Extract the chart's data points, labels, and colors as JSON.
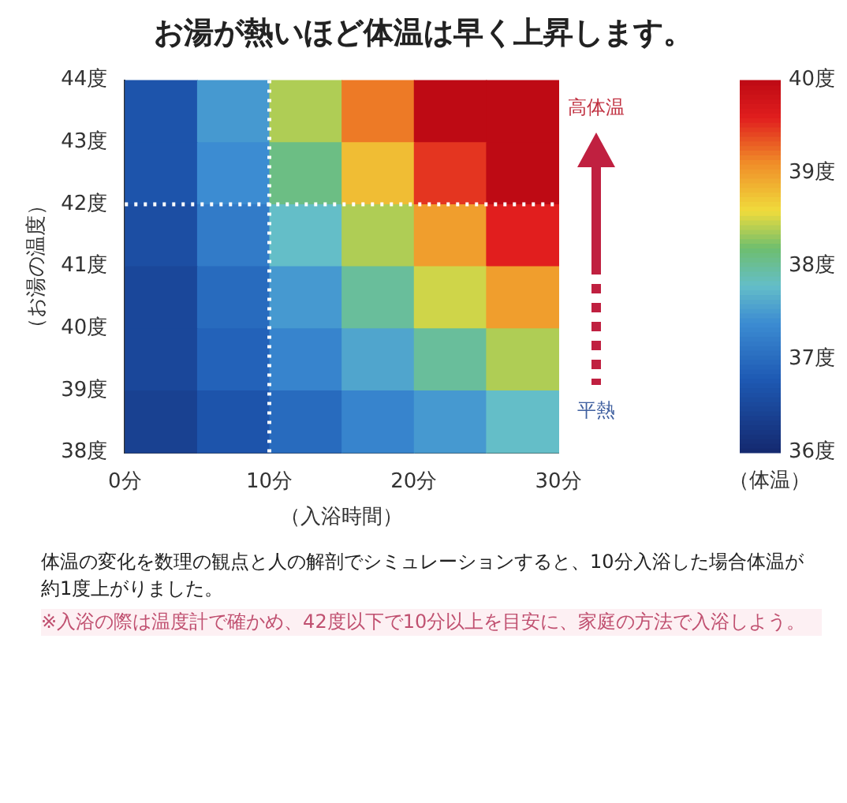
{
  "chart_data": {
    "type": "heatmap",
    "title": "お湯が熱いほど体温は早く上昇します。",
    "xlabel": "（入浴時間）",
    "ylabel": "（お湯の温度）",
    "clabel": "（体温）",
    "xlim": [
      0,
      30
    ],
    "xticks": [
      {
        "value": 0,
        "label": "0分"
      },
      {
        "value": 10,
        "label": "10分"
      },
      {
        "value": 20,
        "label": "20分"
      },
      {
        "value": 30,
        "label": "30分"
      }
    ],
    "ylim": [
      38,
      44
    ],
    "yticks": [
      {
        "value": 38,
        "label": "38度"
      },
      {
        "value": 39,
        "label": "39度"
      },
      {
        "value": 40,
        "label": "40度"
      },
      {
        "value": 41,
        "label": "41度"
      },
      {
        "value": 42,
        "label": "42度"
      },
      {
        "value": 43,
        "label": "43度"
      },
      {
        "value": 44,
        "label": "44度"
      }
    ],
    "cells": [
      [
        36.7,
        37.5,
        38.4,
        39.2,
        40.0,
        40.0
      ],
      [
        36.7,
        37.4,
        38.1,
        38.8,
        39.5,
        40.0
      ],
      [
        36.6,
        37.2,
        37.8,
        38.4,
        39.0,
        39.6
      ],
      [
        36.5,
        37.0,
        37.5,
        38.0,
        38.5,
        39.0
      ],
      [
        36.5,
        36.9,
        37.3,
        37.6,
        38.0,
        38.4
      ],
      [
        36.4,
        36.7,
        37.0,
        37.3,
        37.5,
        37.8
      ]
    ],
    "clim": [
      36,
      40
    ],
    "cticks": [
      {
        "value": 36,
        "label": "36度"
      },
      {
        "value": 37,
        "label": "37度"
      },
      {
        "value": 38,
        "label": "38度"
      },
      {
        "value": 39,
        "label": "39度"
      },
      {
        "value": 40,
        "label": "40度"
      }
    ],
    "ref_lines": [
      {
        "axis": "x",
        "value": 10,
        "color": "#ffffff",
        "line_style": "dotted"
      },
      {
        "axis": "y",
        "value": 42,
        "color": "#ffffff",
        "line_style": "dotted"
      }
    ],
    "annotations": [
      "高体温",
      "平熱",
      "体温の変化を数理の観点と人の解剖でシミュレーションすると、10分入浴した場合体温が約1度上がりました。",
      "※入浴の際は温度計で確かめ、42度以下で10分以上を目安に、家庭の方法で入浴しよう。"
    ]
  }
}
